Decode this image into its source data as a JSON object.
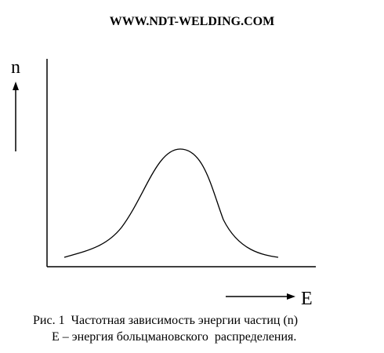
{
  "header": {
    "title": "WWW.NDT-WELDING.COM"
  },
  "axes": {
    "y_label": "n",
    "x_label": "E"
  },
  "caption": {
    "line1": "Рис. 1  Частотная зависимость энергии частиц (n)",
    "line2": "E – энергия больцмановского  распределения."
  }
}
